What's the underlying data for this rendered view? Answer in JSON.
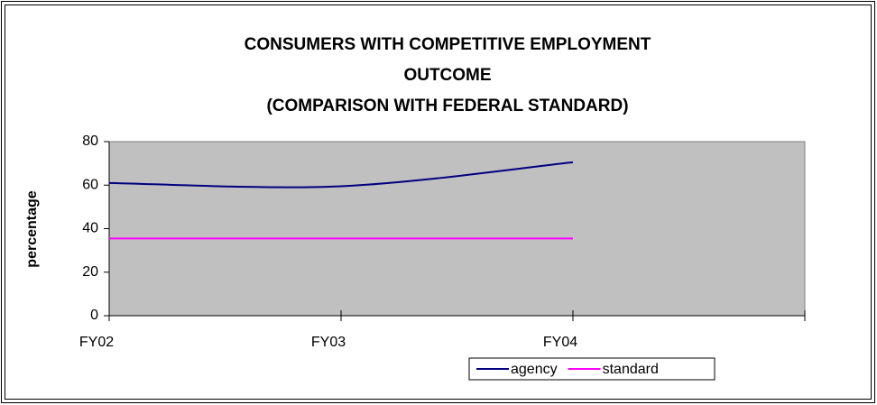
{
  "chart_data": {
    "type": "line",
    "title": [
      "CONSUMERS WITH COMPETITIVE EMPLOYMENT",
      "OUTCOME",
      "(COMPARISON WITH FEDERAL STANDARD)"
    ],
    "y_label": "percentage",
    "categories": [
      "FY02",
      "FY03",
      "FY04",
      null
    ],
    "series": [
      {
        "name": "agency",
        "color": "#000080",
        "smooth": true,
        "values": [
          61,
          59.5,
          70.5,
          null
        ]
      },
      {
        "name": "standard",
        "color": "#ff00ff",
        "smooth": false,
        "values": [
          35.5,
          35.5,
          35.5,
          null
        ]
      }
    ],
    "ylim": [
      0,
      80
    ],
    "yticks": [
      0,
      20,
      40,
      60,
      80
    ],
    "grid": false,
    "legend": "bottom",
    "plot_background": "#c0c0c0"
  }
}
